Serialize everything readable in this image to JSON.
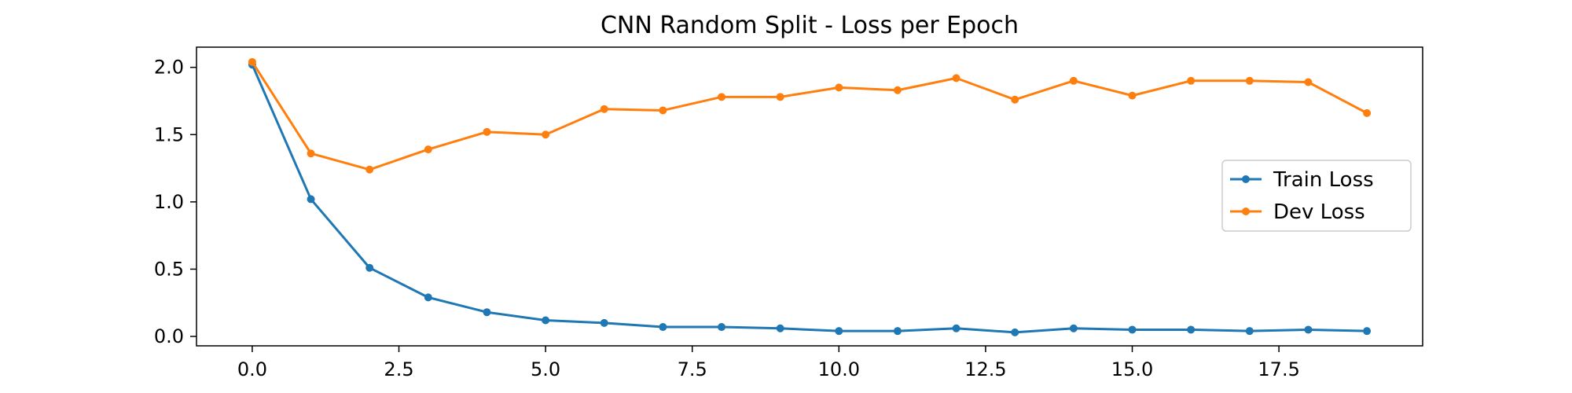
{
  "chart_data": {
    "type": "line",
    "title": "CNN Random Split -  Loss per Epoch",
    "xlabel": "",
    "ylabel": "",
    "xlim": [
      -0.95,
      19.95
    ],
    "ylim": [
      -0.07,
      2.15
    ],
    "xticks": [
      0.0,
      2.5,
      5.0,
      7.5,
      10.0,
      12.5,
      15.0,
      17.5
    ],
    "xtick_labels": [
      "0.0",
      "2.5",
      "5.0",
      "7.5",
      "10.0",
      "12.5",
      "15.0",
      "17.5"
    ],
    "yticks": [
      0.0,
      0.5,
      1.0,
      1.5,
      2.0
    ],
    "ytick_labels": [
      "0.0",
      "0.5",
      "1.0",
      "1.5",
      "2.0"
    ],
    "x": [
      0,
      1,
      2,
      3,
      4,
      5,
      6,
      7,
      8,
      9,
      10,
      11,
      12,
      13,
      14,
      15,
      16,
      17,
      18,
      19
    ],
    "series": [
      {
        "name": "Train Loss",
        "color": "#1f77b4",
        "values": [
          2.02,
          1.02,
          0.51,
          0.29,
          0.18,
          0.12,
          0.1,
          0.07,
          0.07,
          0.06,
          0.04,
          0.04,
          0.06,
          0.03,
          0.06,
          0.05,
          0.05,
          0.04,
          0.05,
          0.04
        ]
      },
      {
        "name": "Dev Loss",
        "color": "#ff7f0e",
        "values": [
          2.04,
          1.36,
          1.24,
          1.39,
          1.52,
          1.5,
          1.69,
          1.68,
          1.78,
          1.78,
          1.85,
          1.83,
          1.92,
          1.76,
          1.9,
          1.79,
          1.9,
          1.9,
          1.89,
          1.66
        ]
      }
    ],
    "grid": false,
    "legend_position": "center-right"
  }
}
